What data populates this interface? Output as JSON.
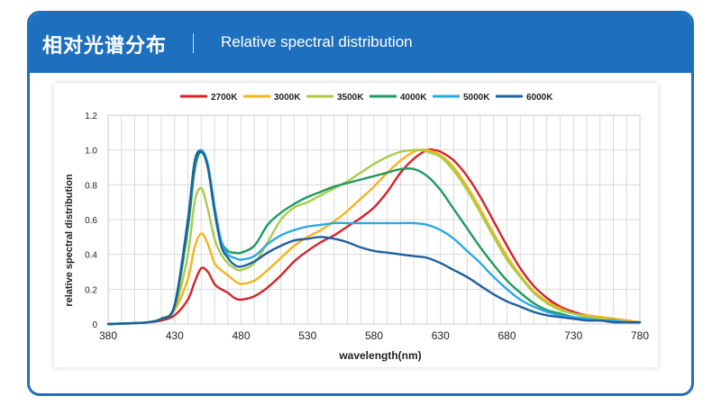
{
  "header": {
    "title_cn": "相对光谱分布",
    "title_en": "Relative spectral distribution"
  },
  "chart_data": {
    "type": "line",
    "title": "",
    "xlabel": "wavelength(nm)",
    "ylabel": "relative spectral distribution",
    "xlim": [
      380,
      780
    ],
    "ylim": [
      0,
      1.2
    ],
    "xticks": [
      380,
      430,
      480,
      530,
      580,
      630,
      680,
      730,
      780
    ],
    "yticks": [
      0,
      0.2,
      0.4,
      0.6,
      0.8,
      1.0,
      1.2
    ],
    "ytick_labels": [
      "0",
      "0.2",
      "0.4",
      "0.6",
      "0.8",
      "1.0",
      "1.2"
    ],
    "grid": true,
    "legend": "top",
    "series": [
      {
        "name": "2700K",
        "color": "#d3232a",
        "x": [
          380,
          400,
          410,
          420,
          430,
          440,
          445,
          450,
          455,
          460,
          465,
          470,
          475,
          480,
          490,
          500,
          510,
          520,
          530,
          540,
          550,
          560,
          570,
          580,
          590,
          600,
          610,
          620,
          625,
          630,
          640,
          650,
          660,
          670,
          680,
          690,
          700,
          710,
          720,
          730,
          740,
          750,
          760,
          770,
          780
        ],
        "y": [
          0,
          0.005,
          0.01,
          0.02,
          0.05,
          0.14,
          0.24,
          0.32,
          0.3,
          0.23,
          0.2,
          0.18,
          0.15,
          0.14,
          0.16,
          0.21,
          0.28,
          0.36,
          0.42,
          0.47,
          0.51,
          0.56,
          0.61,
          0.67,
          0.76,
          0.87,
          0.95,
          1.0,
          1.0,
          0.99,
          0.94,
          0.85,
          0.73,
          0.59,
          0.45,
          0.32,
          0.22,
          0.15,
          0.1,
          0.07,
          0.05,
          0.04,
          0.03,
          0.02,
          0.01
        ]
      },
      {
        "name": "3000K",
        "color": "#f5b31b",
        "x": [
          380,
          400,
          410,
          420,
          430,
          440,
          445,
          450,
          455,
          460,
          465,
          470,
          475,
          480,
          490,
          500,
          510,
          520,
          530,
          540,
          550,
          560,
          570,
          580,
          590,
          600,
          610,
          615,
          620,
          630,
          640,
          650,
          660,
          670,
          680,
          690,
          700,
          710,
          720,
          730,
          740,
          750,
          760,
          770,
          780
        ],
        "y": [
          0,
          0.005,
          0.01,
          0.03,
          0.08,
          0.26,
          0.44,
          0.52,
          0.46,
          0.35,
          0.31,
          0.28,
          0.25,
          0.23,
          0.25,
          0.31,
          0.38,
          0.45,
          0.5,
          0.54,
          0.59,
          0.65,
          0.72,
          0.79,
          0.87,
          0.94,
          0.99,
          1.0,
          1.0,
          0.97,
          0.9,
          0.79,
          0.66,
          0.52,
          0.39,
          0.28,
          0.19,
          0.13,
          0.09,
          0.06,
          0.05,
          0.04,
          0.03,
          0.02,
          0.01
        ]
      },
      {
        "name": "3500K",
        "color": "#a8cc4a",
        "x": [
          380,
          400,
          410,
          420,
          430,
          440,
          445,
          450,
          455,
          460,
          465,
          470,
          475,
          480,
          490,
          500,
          510,
          520,
          530,
          540,
          550,
          560,
          570,
          580,
          590,
          600,
          610,
          615,
          620,
          630,
          640,
          650,
          660,
          670,
          680,
          690,
          700,
          710,
          720,
          730,
          740,
          750,
          760,
          770,
          780
        ],
        "y": [
          0,
          0.005,
          0.01,
          0.03,
          0.09,
          0.4,
          0.7,
          0.78,
          0.66,
          0.49,
          0.4,
          0.35,
          0.32,
          0.31,
          0.35,
          0.47,
          0.6,
          0.67,
          0.7,
          0.74,
          0.78,
          0.82,
          0.87,
          0.92,
          0.96,
          0.99,
          1.0,
          1.0,
          0.99,
          0.96,
          0.88,
          0.77,
          0.64,
          0.5,
          0.37,
          0.27,
          0.18,
          0.12,
          0.08,
          0.06,
          0.04,
          0.03,
          0.02,
          0.01,
          0.01
        ]
      },
      {
        "name": "4000K",
        "color": "#1f9a5c",
        "x": [
          380,
          400,
          410,
          420,
          430,
          440,
          445,
          450,
          455,
          460,
          465,
          470,
          475,
          480,
          490,
          500,
          510,
          520,
          530,
          540,
          550,
          560,
          570,
          580,
          590,
          600,
          610,
          620,
          630,
          640,
          650,
          660,
          670,
          680,
          690,
          700,
          710,
          720,
          730,
          740,
          750,
          760,
          770,
          780
        ],
        "y": [
          0,
          0.005,
          0.01,
          0.03,
          0.1,
          0.55,
          0.88,
          0.99,
          0.9,
          0.65,
          0.48,
          0.42,
          0.41,
          0.41,
          0.45,
          0.57,
          0.64,
          0.69,
          0.73,
          0.76,
          0.79,
          0.81,
          0.83,
          0.85,
          0.87,
          0.89,
          0.89,
          0.85,
          0.77,
          0.66,
          0.55,
          0.44,
          0.34,
          0.25,
          0.18,
          0.12,
          0.08,
          0.06,
          0.04,
          0.03,
          0.02,
          0.02,
          0.01,
          0.01
        ]
      },
      {
        "name": "5000K",
        "color": "#2aaae2",
        "x": [
          380,
          400,
          410,
          420,
          430,
          440,
          445,
          450,
          455,
          460,
          465,
          470,
          475,
          480,
          490,
          500,
          510,
          520,
          530,
          540,
          550,
          560,
          570,
          580,
          590,
          600,
          610,
          620,
          630,
          640,
          650,
          660,
          670,
          680,
          690,
          700,
          710,
          720,
          730,
          740,
          750,
          760,
          770,
          780
        ],
        "y": [
          0,
          0.005,
          0.01,
          0.03,
          0.11,
          0.6,
          0.93,
          1.0,
          0.92,
          0.68,
          0.48,
          0.4,
          0.38,
          0.37,
          0.39,
          0.46,
          0.51,
          0.54,
          0.56,
          0.57,
          0.58,
          0.58,
          0.58,
          0.58,
          0.58,
          0.58,
          0.58,
          0.57,
          0.54,
          0.49,
          0.42,
          0.35,
          0.27,
          0.2,
          0.14,
          0.1,
          0.07,
          0.05,
          0.04,
          0.03,
          0.02,
          0.02,
          0.01,
          0.01
        ]
      },
      {
        "name": "6000K",
        "color": "#1f5f9f",
        "x": [
          380,
          400,
          410,
          420,
          430,
          440,
          445,
          450,
          455,
          460,
          465,
          470,
          475,
          480,
          490,
          500,
          510,
          520,
          530,
          540,
          550,
          560,
          570,
          580,
          590,
          600,
          610,
          620,
          630,
          640,
          650,
          660,
          670,
          680,
          690,
          700,
          710,
          720,
          730,
          740,
          750,
          760,
          770,
          780
        ],
        "y": [
          0,
          0.005,
          0.01,
          0.03,
          0.11,
          0.6,
          0.93,
          0.99,
          0.9,
          0.65,
          0.45,
          0.38,
          0.34,
          0.33,
          0.36,
          0.41,
          0.45,
          0.48,
          0.49,
          0.5,
          0.49,
          0.47,
          0.44,
          0.42,
          0.41,
          0.4,
          0.39,
          0.38,
          0.35,
          0.31,
          0.27,
          0.22,
          0.17,
          0.13,
          0.1,
          0.07,
          0.05,
          0.04,
          0.03,
          0.02,
          0.02,
          0.01,
          0.01,
          0.01
        ]
      }
    ]
  }
}
